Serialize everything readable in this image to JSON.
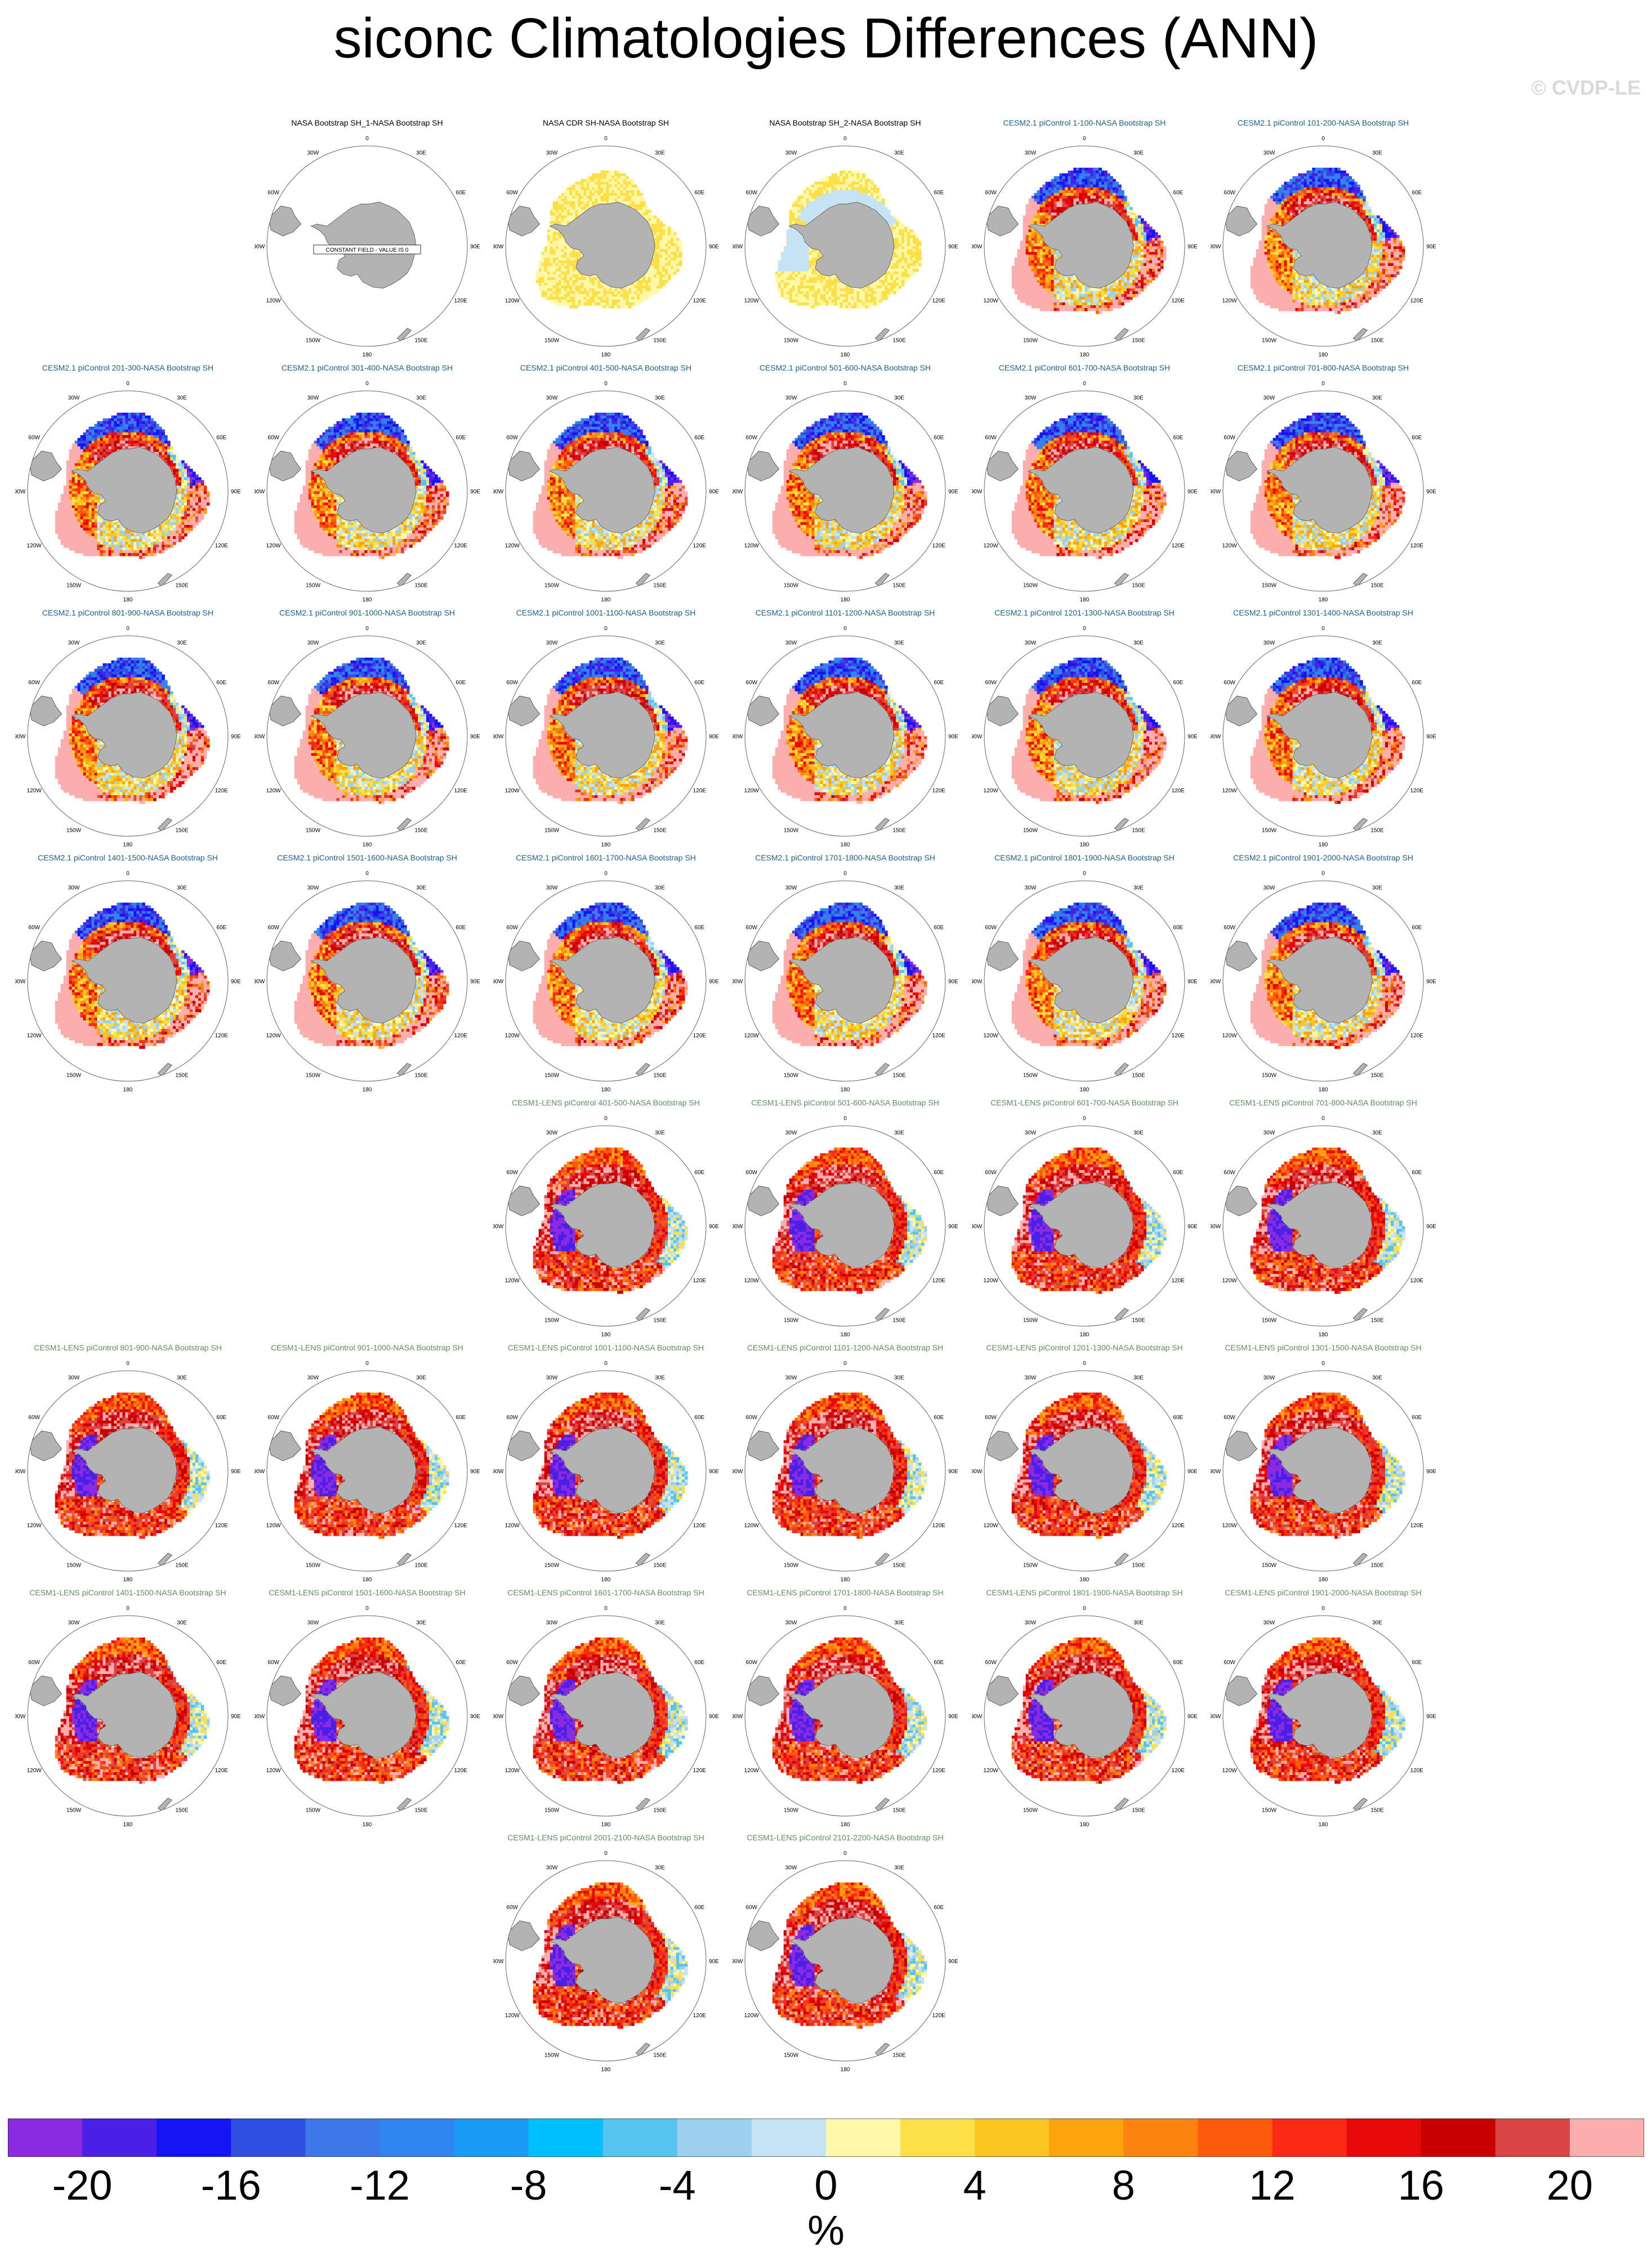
{
  "title": "siconc Climatologies Differences (ANN)",
  "watermark": "© CVDP-LE",
  "map_labels": {
    "lon_0": "0",
    "lon_30e": "30E",
    "lon_60e": "60E",
    "lon_90e": "90E",
    "lon_120e": "120E",
    "lon_150e": "150E",
    "lon_180": "180",
    "lon_150w": "150W",
    "lon_120w": "120W",
    "lon_90w": "90W",
    "lon_60w": "60W",
    "lon_30w": "30W"
  },
  "constant_field_label": "CONSTANT FIELD - VALUE IS 0",
  "colors": {
    "land": "#b3b3b3",
    "cesm2_title": "#1a5f8f",
    "cesm1_title": "#5f8f5f",
    "obs_title": "#000000"
  },
  "panels": [
    {
      "title": "NASA Bootstrap SH_1-NASA Bootstrap SH",
      "group": "obs",
      "pattern": "zero"
    },
    {
      "title": "NASA CDR SH-NASA Bootstrap SH",
      "group": "obs",
      "pattern": "cdr"
    },
    {
      "title": "NASA Bootstrap SH_2-NASA Bootstrap SH",
      "group": "obs",
      "pattern": "bs2"
    },
    {
      "title": "CESM2.1 piControl 1-100-NASA Bootstrap SH",
      "group": "cesm2",
      "pattern": "cesm2"
    },
    {
      "title": "CESM2.1 piControl 101-200-NASA Bootstrap SH",
      "group": "cesm2",
      "pattern": "cesm2"
    },
    {
      "title": "CESM2.1 piControl 201-300-NASA Bootstrap SH",
      "group": "cesm2",
      "pattern": "cesm2"
    },
    {
      "title": "CESM2.1 piControl 301-400-NASA Bootstrap SH",
      "group": "cesm2",
      "pattern": "cesm2"
    },
    {
      "title": "CESM2.1 piControl 401-500-NASA Bootstrap SH",
      "group": "cesm2",
      "pattern": "cesm2"
    },
    {
      "title": "CESM2.1 piControl 501-600-NASA Bootstrap SH",
      "group": "cesm2",
      "pattern": "cesm2"
    },
    {
      "title": "CESM2.1 piControl 601-700-NASA Bootstrap SH",
      "group": "cesm2",
      "pattern": "cesm2"
    },
    {
      "title": "CESM2.1 piControl 701-800-NASA Bootstrap SH",
      "group": "cesm2",
      "pattern": "cesm2"
    },
    {
      "title": "CESM2.1 piControl 801-900-NASA Bootstrap SH",
      "group": "cesm2",
      "pattern": "cesm2"
    },
    {
      "title": "CESM2.1 piControl 901-1000-NASA Bootstrap SH",
      "group": "cesm2",
      "pattern": "cesm2"
    },
    {
      "title": "CESM2.1 piControl 1001-1100-NASA Bootstrap SH",
      "group": "cesm2",
      "pattern": "cesm2"
    },
    {
      "title": "CESM2.1 piControl 1101-1200-NASA Bootstrap SH",
      "group": "cesm2",
      "pattern": "cesm2"
    },
    {
      "title": "CESM2.1 piControl 1201-1300-NASA Bootstrap SH",
      "group": "cesm2",
      "pattern": "cesm2"
    },
    {
      "title": "CESM2.1 piControl 1301-1400-NASA Bootstrap SH",
      "group": "cesm2",
      "pattern": "cesm2"
    },
    {
      "title": "CESM2.1 piControl 1401-1500-NASA Bootstrap SH",
      "group": "cesm2",
      "pattern": "cesm2"
    },
    {
      "title": "CESM2.1 piControl 1501-1600-NASA Bootstrap SH",
      "group": "cesm2",
      "pattern": "cesm2"
    },
    {
      "title": "CESM2.1 piControl 1601-1700-NASA Bootstrap SH",
      "group": "cesm2",
      "pattern": "cesm2"
    },
    {
      "title": "CESM2.1 piControl 1701-1800-NASA Bootstrap SH",
      "group": "cesm2",
      "pattern": "cesm2"
    },
    {
      "title": "CESM2.1 piControl 1801-1900-NASA Bootstrap SH",
      "group": "cesm2",
      "pattern": "cesm2"
    },
    {
      "title": "CESM2.1 piControl 1901-2000-NASA Bootstrap SH",
      "group": "cesm2",
      "pattern": "cesm2"
    },
    {
      "title": "CESM1-LENS piControl 401-500-NASA Bootstrap SH",
      "group": "cesm1",
      "pattern": "cesm1"
    },
    {
      "title": "CESM1-LENS piControl 501-600-NASA Bootstrap SH",
      "group": "cesm1",
      "pattern": "cesm1"
    },
    {
      "title": "CESM1-LENS piControl 601-700-NASA Bootstrap SH",
      "group": "cesm1",
      "pattern": "cesm1"
    },
    {
      "title": "CESM1-LENS piControl 701-800-NASA Bootstrap SH",
      "group": "cesm1",
      "pattern": "cesm1"
    },
    {
      "title": "CESM1-LENS piControl 801-900-NASA Bootstrap SH",
      "group": "cesm1",
      "pattern": "cesm1"
    },
    {
      "title": "CESM1-LENS piControl 901-1000-NASA Bootstrap SH",
      "group": "cesm1",
      "pattern": "cesm1"
    },
    {
      "title": "CESM1-LENS piControl 1001-1100-NASA Bootstrap SH",
      "group": "cesm1",
      "pattern": "cesm1"
    },
    {
      "title": "CESM1-LENS piControl 1101-1200-NASA Bootstrap SH",
      "group": "cesm1",
      "pattern": "cesm1"
    },
    {
      "title": "CESM1-LENS piControl 1201-1300-NASA Bootstrap SH",
      "group": "cesm1",
      "pattern": "cesm1"
    },
    {
      "title": "CESM1-LENS piControl 1301-1500-NASA Bootstrap SH",
      "group": "cesm1",
      "pattern": "cesm1"
    },
    {
      "title": "CESM1-LENS piControl 1401-1500-NASA Bootstrap SH",
      "group": "cesm1",
      "pattern": "cesm1"
    },
    {
      "title": "CESM1-LENS piControl 1501-1600-NASA Bootstrap SH",
      "group": "cesm1",
      "pattern": "cesm1"
    },
    {
      "title": "CESM1-LENS piControl 1601-1700-NASA Bootstrap SH",
      "group": "cesm1",
      "pattern": "cesm1"
    },
    {
      "title": "CESM1-LENS piControl 1701-1800-NASA Bootstrap SH",
      "group": "cesm1",
      "pattern": "cesm1"
    },
    {
      "title": "CESM1-LENS piControl 1801-1900-NASA Bootstrap SH",
      "group": "cesm1",
      "pattern": "cesm1"
    },
    {
      "title": "CESM1-LENS piControl 1901-2000-NASA Bootstrap SH",
      "group": "cesm1",
      "pattern": "cesm1"
    },
    {
      "title": "CESM1-LENS piControl 2001-2100-NASA Bootstrap SH",
      "group": "cesm1",
      "pattern": "cesm1"
    },
    {
      "title": "CESM1-LENS piControl 2101-2200-NASA Bootstrap SH",
      "group": "cesm1",
      "pattern": "cesm1"
    }
  ],
  "colorbar": {
    "colors": [
      "#8a2be2",
      "#4a1fe6",
      "#1414f5",
      "#2e4fe0",
      "#3d78e8",
      "#2f86f2",
      "#1a9bf5",
      "#00bfff",
      "#55c4f0",
      "#9dcfee",
      "#c5e3f5",
      "#fff8a8",
      "#fde047",
      "#fdc522",
      "#fda30e",
      "#fd8310",
      "#fd5a0c",
      "#fb2a14",
      "#e80a0a",
      "#c80000",
      "#d94545",
      "#fcaeae"
    ],
    "tick_labels": [
      "-20",
      "-16",
      "-12",
      "-8",
      "-4",
      "0",
      "4",
      "8",
      "12",
      "16",
      "20"
    ],
    "unit": "%"
  }
}
